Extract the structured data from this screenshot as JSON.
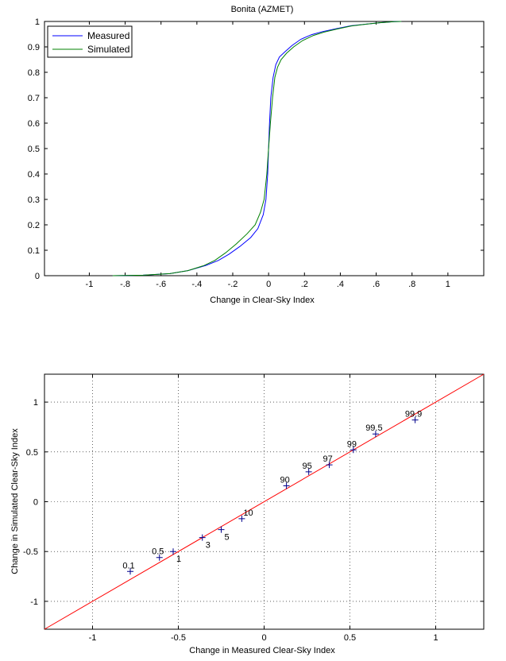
{
  "chart_data": [
    {
      "type": "line",
      "title": "Bonita (AZMET)",
      "xlabel": "Change in Clear-Sky Index",
      "ylabel": "",
      "xlim": [
        -1.25,
        1.2
      ],
      "ylim": [
        0,
        1
      ],
      "xticks": [
        -1,
        -0.8,
        -0.6,
        -0.4,
        -0.2,
        0,
        0.2,
        0.4,
        0.6,
        0.8,
        1
      ],
      "yticks": [
        0,
        0.1,
        0.2,
        0.3,
        0.4,
        0.5,
        0.6,
        0.7,
        0.8,
        0.9,
        1
      ],
      "grid": false,
      "legend": "top-left",
      "series": [
        {
          "name": "Measured",
          "color": "#0000ff",
          "x": [
            -0.87,
            -0.7,
            -0.55,
            -0.45,
            -0.35,
            -0.28,
            -0.22,
            -0.16,
            -0.1,
            -0.06,
            -0.03,
            -0.015,
            -0.005,
            0.0,
            0.005,
            0.012,
            0.025,
            0.04,
            0.06,
            0.09,
            0.13,
            0.18,
            0.24,
            0.3,
            0.38,
            0.46,
            0.55,
            0.62,
            0.7,
            0.74
          ],
          "y": [
            0.0,
            0.002,
            0.008,
            0.02,
            0.04,
            0.06,
            0.085,
            0.115,
            0.15,
            0.185,
            0.24,
            0.3,
            0.4,
            0.5,
            0.6,
            0.7,
            0.78,
            0.83,
            0.86,
            0.88,
            0.905,
            0.93,
            0.948,
            0.96,
            0.972,
            0.983,
            0.99,
            0.995,
            0.999,
            1.0
          ]
        },
        {
          "name": "Simulated",
          "color": "#008000",
          "x": [
            -0.87,
            -0.7,
            -0.55,
            -0.45,
            -0.36,
            -0.3,
            -0.24,
            -0.18,
            -0.12,
            -0.075,
            -0.045,
            -0.025,
            -0.01,
            0.0,
            0.01,
            0.022,
            0.035,
            0.05,
            0.07,
            0.1,
            0.14,
            0.19,
            0.25,
            0.31,
            0.38,
            0.46,
            0.55,
            0.62,
            0.7,
            0.74
          ],
          "y": [
            0.0,
            0.002,
            0.008,
            0.02,
            0.04,
            0.06,
            0.09,
            0.125,
            0.165,
            0.2,
            0.25,
            0.3,
            0.4,
            0.5,
            0.6,
            0.7,
            0.78,
            0.82,
            0.85,
            0.875,
            0.9,
            0.925,
            0.945,
            0.958,
            0.97,
            0.982,
            0.99,
            0.995,
            0.999,
            1.0
          ]
        }
      ]
    },
    {
      "type": "scatter",
      "title": "",
      "xlabel": "Change in Measured Clear-Sky Index",
      "ylabel": "Change in Simulated Clear-Sky Index",
      "xlim": [
        -1.28,
        1.28
      ],
      "ylim": [
        -1.28,
        1.28
      ],
      "xticks": [
        -1,
        -0.5,
        0,
        0.5,
        1
      ],
      "yticks": [
        -1,
        -0.5,
        0,
        0.5,
        1
      ],
      "grid": true,
      "reference_line": {
        "x": [
          -1.28,
          1.28
        ],
        "y": [
          -1.28,
          1.28
        ],
        "color": "#ff0000"
      },
      "marker_color": "#00008b",
      "points": [
        {
          "label": "0.1",
          "x": -0.78,
          "y": -0.7
        },
        {
          "label": "0.5",
          "x": -0.61,
          "y": -0.56
        },
        {
          "label": "1",
          "x": -0.53,
          "y": -0.5
        },
        {
          "label": "3",
          "x": -0.36,
          "y": -0.36
        },
        {
          "label": "5",
          "x": -0.25,
          "y": -0.28
        },
        {
          "label": "10",
          "x": -0.13,
          "y": -0.17
        },
        {
          "label": "90",
          "x": 0.13,
          "y": 0.16
        },
        {
          "label": "95",
          "x": 0.26,
          "y": 0.3
        },
        {
          "label": "97",
          "x": 0.38,
          "y": 0.37
        },
        {
          "label": "99",
          "x": 0.52,
          "y": 0.52
        },
        {
          "label": "99.5",
          "x": 0.65,
          "y": 0.68
        },
        {
          "label": "99.9",
          "x": 0.88,
          "y": 0.82
        }
      ]
    }
  ]
}
